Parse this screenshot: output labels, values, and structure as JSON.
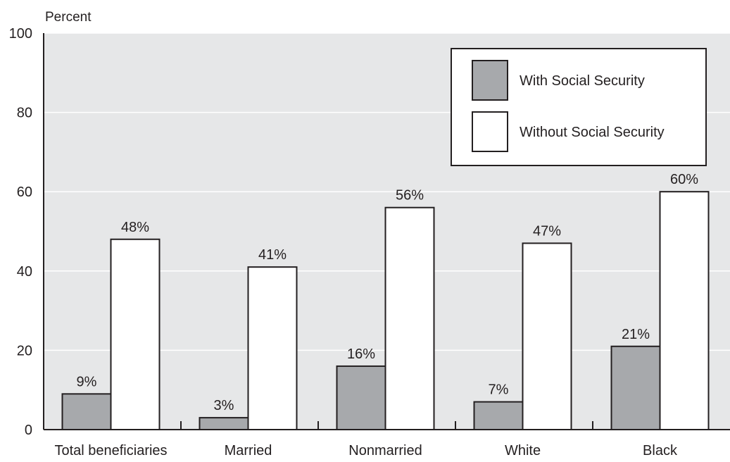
{
  "chart_data": {
    "type": "bar",
    "ylabel": "Percent",
    "ylim": [
      0,
      100
    ],
    "yticks": [
      0,
      20,
      40,
      60,
      80,
      100
    ],
    "categories": [
      "Total beneficiaries",
      "Married",
      "Nonmarried",
      "White",
      "Black"
    ],
    "series": [
      {
        "name": "With Social Security",
        "values": [
          9,
          3,
          16,
          7,
          21
        ],
        "labels": [
          "9%",
          "3%",
          "16%",
          "7%",
          "21%"
        ],
        "color": "#a7a9ac"
      },
      {
        "name": "Without Social Security",
        "values": [
          48,
          41,
          56,
          47,
          60
        ],
        "labels": [
          "48%",
          "41%",
          "56%",
          "47%",
          "60%"
        ],
        "color": "#ffffff"
      }
    ],
    "grid": true,
    "legend_position": "top-right",
    "plot_background": "#e6e7e8",
    "grid_color": "#ffffff",
    "axis_color": "#231f20"
  }
}
